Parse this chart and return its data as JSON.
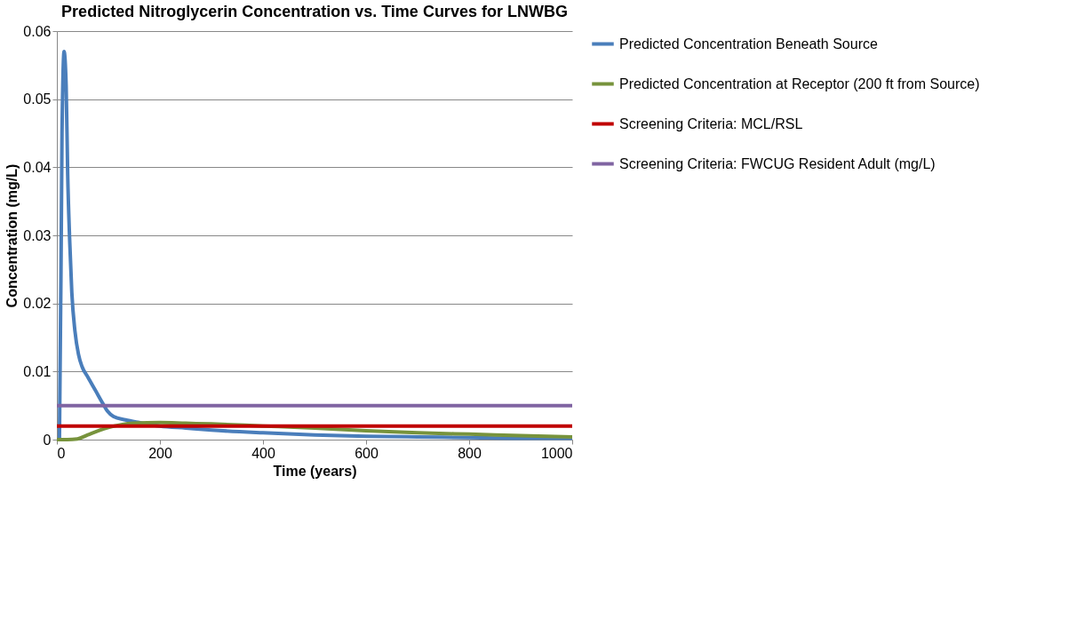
{
  "chart_data": {
    "type": "line",
    "title": "Predicted Nitroglycerin Concentration vs. Time Curves for LNWBG",
    "xlabel": "Time (years)",
    "ylabel": "Concentration (mg/L)",
    "xlim": [
      0,
      1000
    ],
    "xticks": [
      0,
      200,
      400,
      600,
      800,
      1000
    ],
    "ylim": [
      0,
      0.06
    ],
    "yticks": [
      0,
      0.01,
      0.02,
      0.03,
      0.04,
      0.05,
      0.06
    ],
    "grid": "y",
    "legend": "right",
    "marker": "none",
    "line_style": "solid",
    "series": [
      {
        "name": "Predicted Concentration Beneath Source",
        "color": "#4a7ebb",
        "x": [
          0,
          5,
          10,
          14,
          18,
          21,
          25,
          29,
          35,
          42,
          49,
          60,
          75,
          90,
          98,
          110,
          133,
          160,
          200,
          250,
          300,
          400,
          500,
          600,
          700,
          800,
          900,
          1000
        ],
        "values": [
          0,
          0.0,
          0.045,
          0.057,
          0.052,
          0.039,
          0.029,
          0.0216,
          0.016,
          0.0125,
          0.0107,
          0.0092,
          0.0072,
          0.0052,
          0.0042,
          0.0034,
          0.0029,
          0.0025,
          0.002,
          0.0017,
          0.0014,
          0.001,
          0.0007,
          0.0005,
          0.0004,
          0.0003,
          0.0002,
          0.0002
        ]
      },
      {
        "name": "Predicted Concentration at Receptor (200 ft from Source)",
        "color": "#77933c",
        "x": [
          0,
          20,
          40,
          60,
          80,
          100,
          125,
          150,
          200,
          250,
          300,
          400,
          500,
          600,
          700,
          800,
          900,
          1000
        ],
        "values": [
          0,
          0,
          0.0001,
          0.0007,
          0.0013,
          0.0018,
          0.0022,
          0.0024,
          0.0025,
          0.0024,
          0.0023,
          0.002,
          0.0017,
          0.0013,
          0.001,
          0.0008,
          0.0006,
          0.0004
        ]
      },
      {
        "name": "Screening Criteria: MCL/RSL",
        "color": "#c00000",
        "x": [
          0,
          1000
        ],
        "values": [
          0.002,
          0.002
        ]
      },
      {
        "name": "Screening Criteria: FWCUG Resident Adult (mg/L)",
        "color": "#8064a2",
        "x": [
          0,
          1000
        ],
        "values": [
          0.005,
          0.005
        ]
      }
    ]
  }
}
